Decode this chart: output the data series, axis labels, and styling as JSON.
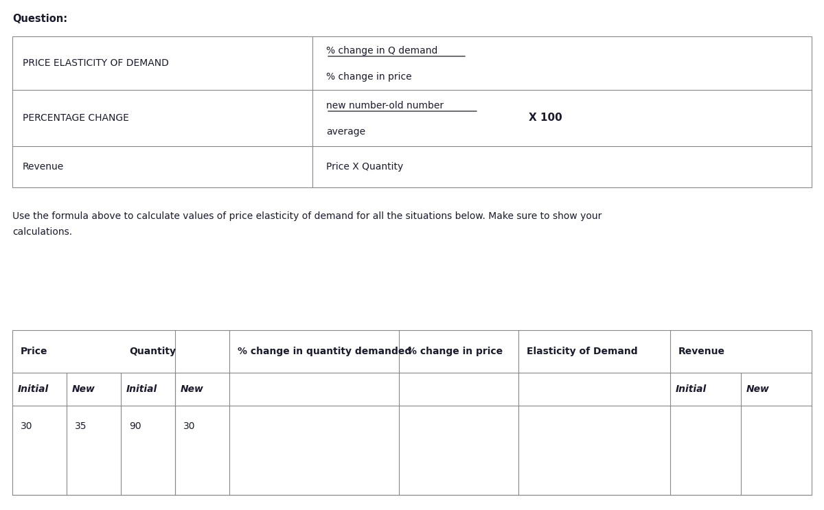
{
  "bg_color": "#ffffff",
  "text_color": "#1a1a2e",
  "question_label": "Question:",
  "top_table": {
    "rows": [
      {
        "col1": "PRICE ELASTICITY OF DEMAND",
        "col2_line1": "% change in Q demand",
        "col2_line1_underline": true,
        "col2_line2": "% change in price",
        "col2_line2_underline": false,
        "col3": ""
      },
      {
        "col1": "PERCENTAGE CHANGE",
        "col2_line1": "new number-old number",
        "col2_line1_underline": true,
        "col2_line2": "average",
        "col2_line2_underline": false,
        "col3": "X 100"
      },
      {
        "col1": "Revenue",
        "col2_line1": "Price X Quantity",
        "col2_line1_underline": false,
        "col2_line2": "",
        "col2_line2_underline": false,
        "col3": ""
      }
    ]
  },
  "instruction_text": "Use the formula above to calculate values of price elasticity of demand for all the situations below. Make sure to show your\ncalculations.",
  "bottom_table": {
    "header_row1": [
      "Price",
      "",
      "Quantity",
      "",
      "% change in quantity demanded",
      "% change in price",
      "Elasticity of Demand",
      "Revenue",
      ""
    ],
    "header_row2": [
      "Initial",
      "New",
      "Initial",
      "New",
      "",
      "",
      "",
      "Initial",
      "New"
    ],
    "data_row": [
      "30",
      "35",
      "90",
      "30",
      "",
      "",
      "",
      "",
      ""
    ]
  }
}
